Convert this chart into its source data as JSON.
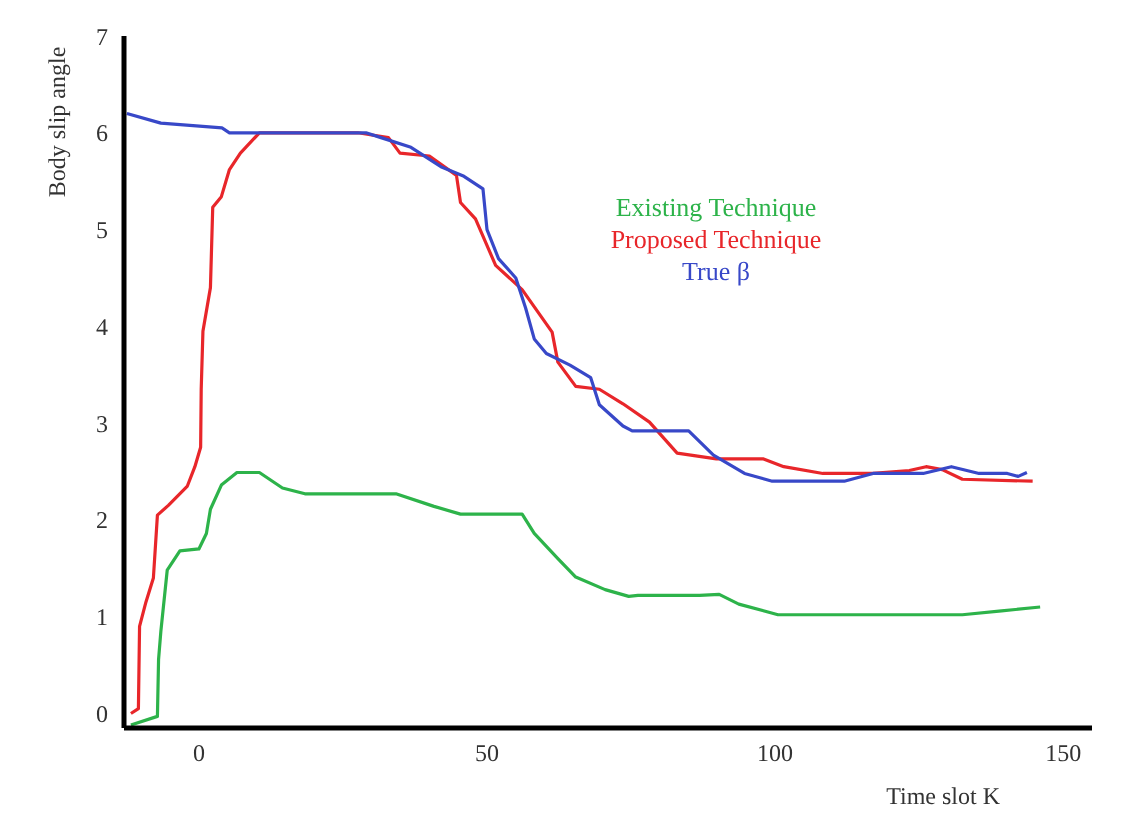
{
  "chart_data": {
    "type": "line",
    "xlabel": "Time slot K",
    "ylabel": "Body slip angle",
    "xlim": [
      -13,
      155
    ],
    "xticks": [
      0,
      50,
      100,
      150
    ],
    "ylim": [
      -0.15,
      7
    ],
    "yticks": [
      0,
      1,
      2,
      3,
      4,
      5,
      6,
      7
    ],
    "grid": false,
    "legend": "top right",
    "marker": "none",
    "line_style": "solid",
    "series": [
      {
        "name": "Existing Technique",
        "color": "#2db34a",
        "x": [
          -11.8,
          -7.2,
          -7,
          -6.6,
          -5.5,
          -3.3,
          0,
          1.3,
          2,
          3.9,
          6.6,
          10.5,
          14.5,
          18.4,
          34.2,
          40.8,
          45.4,
          56.1,
          58.2,
          62.3,
          65.4,
          70.5,
          74.6,
          76.2,
          86.9,
          90.3,
          93.7,
          100.5,
          132.5,
          139.3,
          146
        ],
        "values": [
          -0.12,
          -0.03,
          0.56,
          0.85,
          1.48,
          1.68,
          1.7,
          1.86,
          2.11,
          2.36,
          2.49,
          2.49,
          2.33,
          2.27,
          2.27,
          2.14,
          2.06,
          2.06,
          1.86,
          1.6,
          1.41,
          1.28,
          1.21,
          1.22,
          1.22,
          1.23,
          1.13,
          1.02,
          1.02,
          1.06,
          1.1
        ]
      },
      {
        "name": "Proposed Technique",
        "color": "#e8262a",
        "x": [
          -11.8,
          -10.5,
          -10.3,
          -9.2,
          -7.9,
          -7.2,
          -5.3,
          -2,
          -0.7,
          0.3,
          0.4,
          0.7,
          2,
          2.4,
          3.9,
          5.3,
          7.2,
          10.5,
          27.6,
          32.9,
          34.9,
          40,
          44.7,
          45.4,
          48,
          51.5,
          56.1,
          61.3,
          62.3,
          65.4,
          69.5,
          73.6,
          78.2,
          83,
          89.8,
          98,
          101.5,
          108.3,
          117,
          123.3,
          126.2,
          129,
          132.5,
          144.7
        ],
        "values": [
          0,
          0.05,
          0.9,
          1.15,
          1.4,
          2.05,
          2.15,
          2.35,
          2.55,
          2.75,
          3.35,
          3.95,
          4.4,
          5.23,
          5.34,
          5.62,
          5.79,
          6,
          6,
          5.95,
          5.79,
          5.76,
          5.56,
          5.28,
          5.11,
          4.63,
          4.38,
          3.94,
          3.63,
          3.38,
          3.35,
          3.2,
          3.01,
          2.69,
          2.63,
          2.63,
          2.55,
          2.48,
          2.48,
          2.51,
          2.55,
          2.52,
          2.42,
          2.4
        ]
      },
      {
        "name": "True β",
        "color": "#3848c8",
        "x": [
          -12.5,
          -6.6,
          4,
          5.3,
          29,
          31.6,
          36.8,
          42,
          46,
          49.3,
          50,
          52,
          55,
          56.7,
          58.2,
          60.3,
          64.4,
          68,
          69.5,
          73.6,
          75.2,
          85,
          89.3,
          94.7,
          99.5,
          112,
          117,
          125.7,
          130.6,
          135.4,
          140.3,
          142.2,
          143.7
        ],
        "values": [
          6.2,
          6.1,
          6.05,
          6,
          6,
          5.95,
          5.85,
          5.65,
          5.55,
          5.42,
          5,
          4.7,
          4.5,
          4.19,
          3.87,
          3.72,
          3.6,
          3.47,
          3.19,
          2.97,
          2.92,
          2.92,
          2.67,
          2.48,
          2.4,
          2.4,
          2.48,
          2.48,
          2.55,
          2.48,
          2.48,
          2.45,
          2.49
        ]
      }
    ]
  }
}
